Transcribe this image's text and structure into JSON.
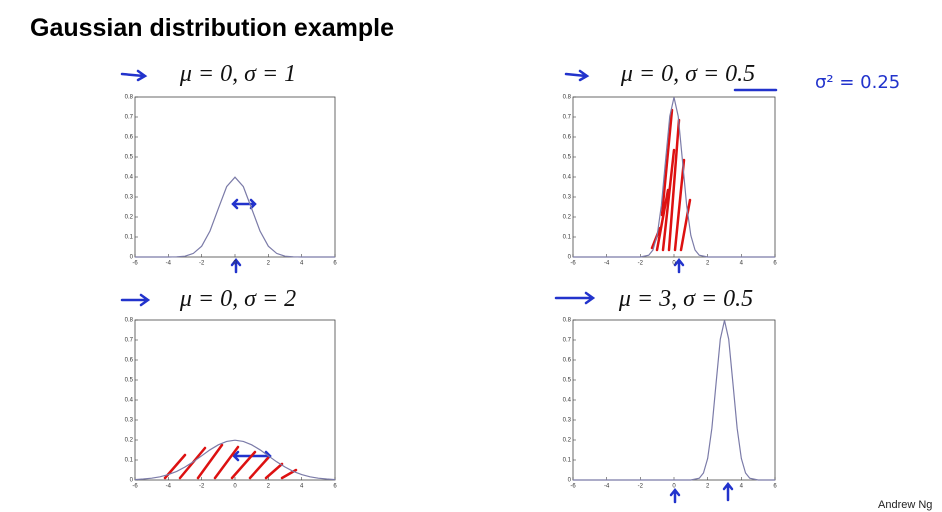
{
  "title": "Gaussian distribution example",
  "annotation": "σ² = 0.25",
  "footer": "Andrew Ng",
  "chart_data": [
    {
      "type": "line",
      "title": "μ = 0, σ = 1",
      "color": "#7b7ba8",
      "x": [
        -6,
        -5.5,
        -5,
        -4.5,
        -4,
        -3.5,
        -3,
        -2.5,
        -2,
        -1.5,
        -1,
        -0.5,
        0,
        0.5,
        1,
        1.5,
        2,
        2.5,
        3,
        3.5,
        4,
        4.5,
        5,
        5.5,
        6
      ],
      "values": [
        0,
        0,
        0,
        0,
        0,
        0.001,
        0.004,
        0.018,
        0.054,
        0.13,
        0.242,
        0.352,
        0.399,
        0.352,
        0.242,
        0.13,
        0.054,
        0.018,
        0.004,
        0.001,
        0,
        0,
        0,
        0,
        0
      ],
      "xlim": [
        -6,
        6
      ],
      "xticks": [
        -6,
        -4,
        -2,
        0,
        2,
        4,
        6
      ],
      "ylim": [
        0,
        0.8
      ],
      "yticks": [
        0,
        0.1,
        0.2,
        0.3,
        0.4,
        0.5,
        0.6,
        0.7,
        0.8
      ]
    },
    {
      "type": "line",
      "title": "μ = 0, σ = 0.5",
      "color": "#7b7ba8",
      "x": [
        -6,
        -3,
        -2,
        -1.5,
        -1.25,
        -1,
        -0.75,
        -0.5,
        -0.25,
        0,
        0.25,
        0.5,
        0.75,
        1,
        1.25,
        1.5,
        2,
        3,
        6
      ],
      "values": [
        0,
        0,
        0,
        0.009,
        0.035,
        0.108,
        0.259,
        0.484,
        0.704,
        0.798,
        0.704,
        0.484,
        0.259,
        0.108,
        0.035,
        0.009,
        0,
        0,
        0
      ],
      "xlim": [
        -6,
        6
      ],
      "xticks": [
        -6,
        -4,
        -2,
        0,
        2,
        4,
        6
      ],
      "ylim": [
        0,
        0.8
      ],
      "yticks": [
        0,
        0.1,
        0.2,
        0.3,
        0.4,
        0.5,
        0.6,
        0.7,
        0.8
      ]
    },
    {
      "type": "line",
      "title": "μ = 0, σ = 2",
      "color": "#7b7ba8",
      "x": [
        -6,
        -5.5,
        -5,
        -4.5,
        -4,
        -3.5,
        -3,
        -2.5,
        -2,
        -1.5,
        -1,
        -0.5,
        0,
        0.5,
        1,
        1.5,
        2,
        2.5,
        3,
        3.5,
        4,
        4.5,
        5,
        5.5,
        6
      ],
      "values": [
        0.002,
        0.005,
        0.009,
        0.016,
        0.027,
        0.043,
        0.065,
        0.091,
        0.121,
        0.151,
        0.176,
        0.193,
        0.199,
        0.193,
        0.176,
        0.151,
        0.121,
        0.091,
        0.065,
        0.043,
        0.027,
        0.016,
        0.009,
        0.005,
        0.002
      ],
      "xlim": [
        -6,
        6
      ],
      "xticks": [
        -6,
        -4,
        -2,
        0,
        2,
        4,
        6
      ],
      "ylim": [
        0,
        0.8
      ],
      "yticks": [
        0,
        0.1,
        0.2,
        0.3,
        0.4,
        0.5,
        0.6,
        0.7,
        0.8
      ]
    },
    {
      "type": "line",
      "title": "μ = 3, σ = 0.5",
      "color": "#7b7ba8",
      "x": [
        -6,
        0,
        1,
        1.5,
        1.75,
        2,
        2.25,
        2.5,
        2.75,
        3,
        3.25,
        3.5,
        3.75,
        4,
        4.25,
        4.5,
        5,
        6
      ],
      "values": [
        0,
        0,
        0,
        0.009,
        0.035,
        0.108,
        0.259,
        0.484,
        0.704,
        0.798,
        0.704,
        0.484,
        0.259,
        0.108,
        0.035,
        0.009,
        0,
        0
      ],
      "xlim": [
        -6,
        6
      ],
      "xticks": [
        -6,
        -4,
        -2,
        0,
        2,
        4,
        6
      ],
      "ylim": [
        0,
        0.8
      ],
      "yticks": [
        0,
        0.1,
        0.2,
        0.3,
        0.4,
        0.5,
        0.6,
        0.7,
        0.8
      ]
    }
  ]
}
